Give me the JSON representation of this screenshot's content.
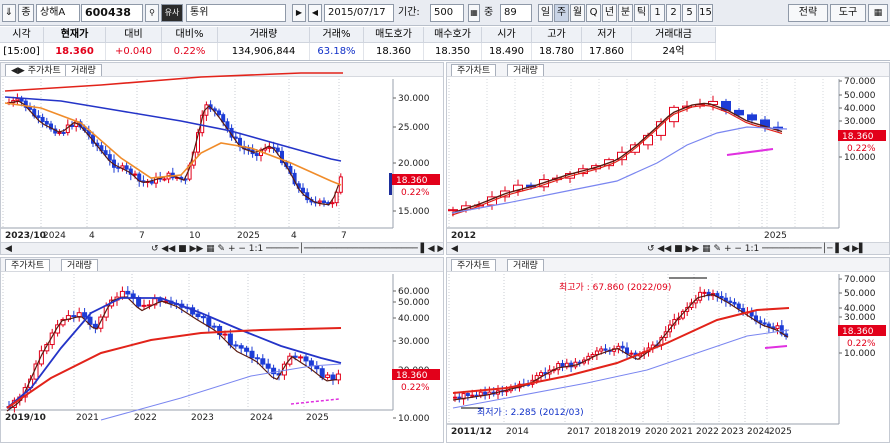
{
  "toolbar": {
    "icon_down": "⇓",
    "btn_type": "종",
    "market": "상해A",
    "code": "600438",
    "search_icon": "🔍",
    "btn_similar": "유사",
    "stock_name": "통위",
    "play_icon": "▶",
    "back_icon": "◀",
    "date": "2015/07/17",
    "period_label": "기간:",
    "period_value": "500",
    "zoom_label": "중",
    "zoom_value": "89",
    "periods": [
      "일",
      "주",
      "월",
      "Q",
      "년",
      "분",
      "틱",
      "1",
      "2",
      "5",
      "15"
    ],
    "active_period": "주",
    "strategy": "전략",
    "tools": "도구"
  },
  "quote": {
    "headers": [
      "시각",
      "현재가",
      "대비",
      "대비%",
      "거래량",
      "거래%",
      "매도호가",
      "매수호가",
      "시가",
      "고가",
      "저가",
      "거래대금"
    ],
    "values": [
      "[15:00]",
      "18.360",
      "+0.040",
      "0.22%",
      "134,906,844",
      "63.18%",
      "18.360",
      "18.350",
      "18.490",
      "18.780",
      "17.860",
      "24억"
    ]
  },
  "panels": {
    "tab_chart": "주가차트",
    "tab_volume": "거래량",
    "price_tag": "18.360",
    "pct_tag": "0.22%",
    "nav_scale": "1:1",
    "p1": {
      "yticks": [
        "30.000",
        "25.000",
        "20.000",
        "15.000"
      ],
      "xticks": [
        "2023/10",
        "2024",
        "4",
        "7",
        "10",
        "2025",
        "4",
        "7"
      ]
    },
    "p2": {
      "yticks": [
        "70.000",
        "50.000",
        "40.000",
        "30.000",
        "20.000",
        "10.000"
      ],
      "xticks": [
        "2012",
        "2025"
      ]
    },
    "p3": {
      "yticks": [
        "60.000",
        "50.000",
        "40.000",
        "30.000",
        "20.000",
        "10.000"
      ],
      "xticks": [
        "2019/10",
        "2021",
        "2022",
        "2023",
        "2024",
        "2025"
      ]
    },
    "p4": {
      "yticks": [
        "70.000",
        "50.000",
        "40.000",
        "30.000",
        "20.000",
        "10.000"
      ],
      "xticks": [
        "2011/12",
        "2014",
        "2017",
        "2018",
        "2019",
        "2020",
        "2021",
        "2022",
        "2023",
        "2024",
        "2025"
      ],
      "high_note": "최고가 : 67.860 (2022/09)",
      "low_note": "최저가 : 2.285 (2012/03)"
    }
  },
  "colors": {
    "up": "#e2001a",
    "down": "#1d3cd6",
    "ma_red": "#e2231a",
    "ma_blue": "#2434c8",
    "ma_orange": "#f08c2a",
    "ma_light": "#7a86f0",
    "ma_dark": "#5a1a10"
  }
}
